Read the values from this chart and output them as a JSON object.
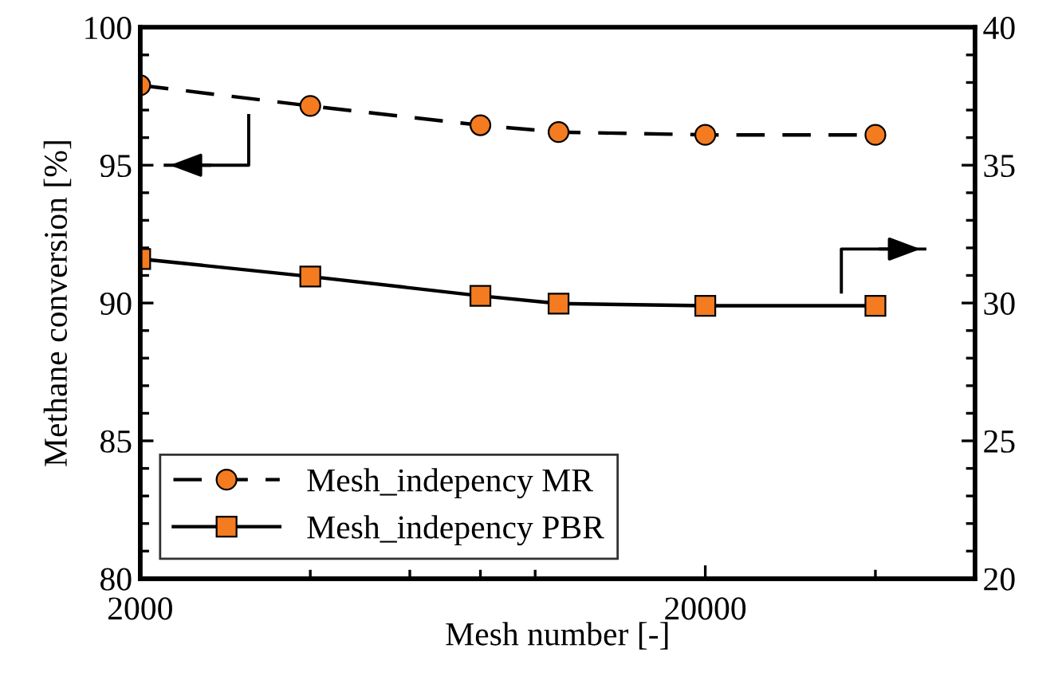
{
  "chart_data": {
    "type": "line",
    "xlabel": "Mesh number [-]",
    "ylabel": "Methane conversion [%]",
    "x": [
      2000,
      4000,
      8000,
      11000,
      20000,
      40000
    ],
    "series": [
      {
        "name": "Mesh_indepency MR",
        "color": "#f47b20",
        "values": [
          97.9,
          97.15,
          96.45,
          96.2,
          96.1,
          96.1
        ],
        "line_style": "dashed",
        "marker": "circle"
      },
      {
        "name": "Mesh_indepency PBR",
        "color": "#f47b20",
        "values": [
          31.6,
          30.96,
          30.26,
          29.98,
          29.9,
          29.9
        ],
        "axis": "y2",
        "line_style": "solid",
        "marker": "square"
      }
    ],
    "log": "x",
    "xlim": [
      2000,
      60000
    ],
    "xticks": [
      2000,
      20000
    ],
    "ylim": [
      80,
      100
    ],
    "yticks": [
      80,
      85,
      90,
      95,
      100
    ],
    "y2lim": [
      20,
      40
    ],
    "y2ticks": [
      20,
      25,
      30,
      35,
      40
    ],
    "grid": false,
    "legend": "bottom left"
  }
}
